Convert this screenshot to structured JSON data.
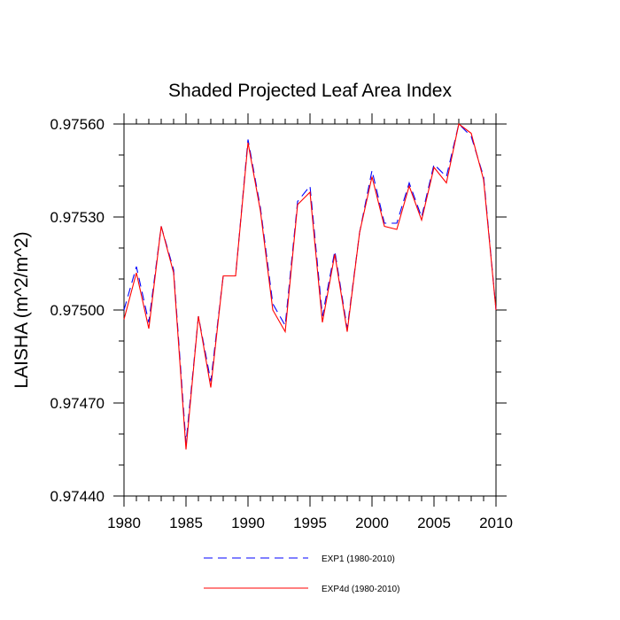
{
  "chart_data": {
    "type": "line",
    "title": "Shaded Projected Leaf Area Index",
    "ylabel": "LAISHA  (m^2/m^2)",
    "xlabel": "",
    "xlim": [
      1980,
      2010
    ],
    "ylim": [
      0.9744,
      0.9756
    ],
    "x_ticks": [
      1980,
      1985,
      1990,
      1995,
      2000,
      2005,
      2010
    ],
    "y_ticks": [
      "0.97440",
      "0.97470",
      "0.97500",
      "0.97530",
      "0.97560"
    ],
    "x": [
      1980,
      1981,
      1982,
      1983,
      1984,
      1985,
      1986,
      1987,
      1988,
      1989,
      1990,
      1991,
      1992,
      1993,
      1994,
      1995,
      1996,
      1997,
      1998,
      1999,
      2000,
      2001,
      2002,
      2003,
      2004,
      2005,
      2006,
      2007,
      2008,
      2009,
      2010
    ],
    "series": [
      {
        "name": "EXP1 (1980-2010)",
        "color": "#0000ff",
        "dash": "dashed",
        "values": [
          0.975,
          0.97514,
          0.97496,
          0.97527,
          0.97513,
          0.97457,
          0.97498,
          0.97477,
          0.97511,
          0.97511,
          0.97555,
          0.97533,
          0.97502,
          0.97495,
          0.97535,
          0.9754,
          0.97498,
          0.97519,
          0.97494,
          0.97525,
          0.97545,
          0.97528,
          0.97528,
          0.97541,
          0.9753,
          0.97547,
          0.97543,
          0.9756,
          0.97556,
          0.97543,
          0.975
        ]
      },
      {
        "name": "EXP4d (1980-2010)",
        "color": "#ff0000",
        "dash": "solid",
        "values": [
          0.97497,
          0.97512,
          0.97494,
          0.97527,
          0.97512,
          0.97455,
          0.97498,
          0.97475,
          0.97511,
          0.97511,
          0.97554,
          0.97532,
          0.975,
          0.97493,
          0.97534,
          0.97538,
          0.97496,
          0.97518,
          0.97493,
          0.97525,
          0.97543,
          0.97527,
          0.97526,
          0.9754,
          0.97529,
          0.97546,
          0.97541,
          0.9756,
          0.97557,
          0.97542,
          0.975
        ]
      }
    ]
  }
}
